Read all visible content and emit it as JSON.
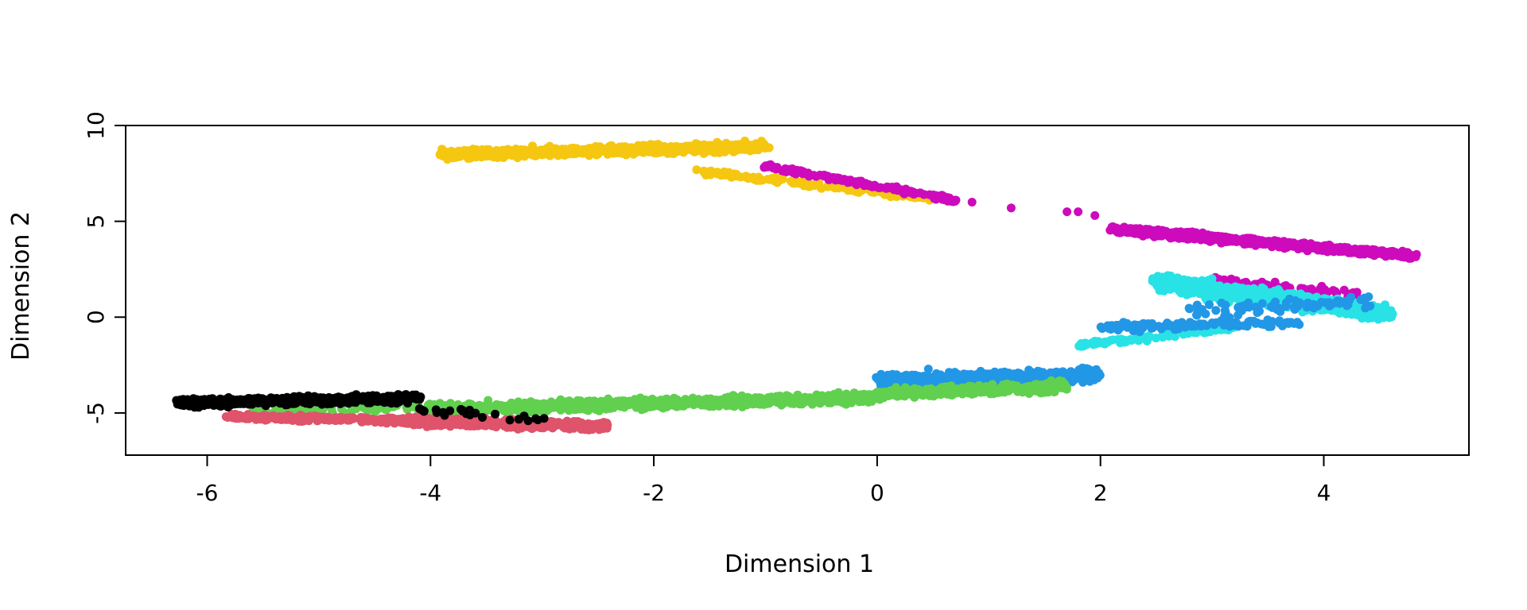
{
  "chart_data": {
    "type": "scatter",
    "title": "",
    "xlabel": "Dimension 1",
    "ylabel": "Dimension 2",
    "xlim": [
      -6.73,
      5.3
    ],
    "ylim": [
      -7.2,
      10
    ],
    "xticks": [
      -6,
      -4,
      -2,
      0,
      2,
      4
    ],
    "yticks": [
      -5,
      0,
      5,
      10
    ],
    "xtick_labels": [
      "-6",
      "-4",
      "-2",
      "0",
      "2",
      "4"
    ],
    "ytick_labels": [
      "-5",
      "0",
      "5",
      "10"
    ],
    "grid": false,
    "legend": "none",
    "series": [
      {
        "color": "#F5C710",
        "clusters": [
          {
            "from": [
              -3.9,
              8.5
            ],
            "to": [
              -1.0,
              8.9
            ],
            "width": 0.9,
            "count": 900
          },
          {
            "from": [
              -1.6,
              7.6
            ],
            "to": [
              0.5,
              6.2
            ],
            "width": 0.6,
            "count": 180
          }
        ]
      },
      {
        "color": "#CD0BBC",
        "clusters": [
          {
            "from": [
              -1.0,
              7.9
            ],
            "to": [
              0.7,
              6.1
            ],
            "width": 0.5,
            "count": 180
          },
          {
            "from": [
              2.1,
              4.6
            ],
            "to": [
              4.8,
              3.2
            ],
            "width": 0.7,
            "count": 800
          },
          {
            "from": [
              3.0,
              2.0
            ],
            "to": [
              4.3,
              1.2
            ],
            "width": 0.8,
            "count": 60
          }
        ],
        "points": [
          [
            0.85,
            6.0
          ],
          [
            1.2,
            5.7
          ],
          [
            1.7,
            5.5
          ],
          [
            1.8,
            5.5
          ],
          [
            1.95,
            5.3
          ]
        ]
      },
      {
        "color": "#28E2E5",
        "clusters": [
          {
            "from": [
              2.5,
              1.8
            ],
            "to": [
              4.6,
              0.2
            ],
            "width": 1.6,
            "count": 900
          },
          {
            "from": [
              1.8,
              -1.5
            ],
            "to": [
              3.2,
              -0.5
            ],
            "width": 0.6,
            "count": 100
          }
        ]
      },
      {
        "color": "#2297E6",
        "clusters": [
          {
            "from": [
              0.0,
              -3.3
            ],
            "to": [
              2.0,
              -3.0
            ],
            "width": 1.3,
            "count": 550
          },
          {
            "from": [
              2.0,
              -0.5
            ],
            "to": [
              3.8,
              -0.3
            ],
            "width": 0.8,
            "count": 120
          },
          {
            "from": [
              2.8,
              0.3
            ],
            "to": [
              4.4,
              0.8
            ],
            "width": 1.4,
            "count": 80
          }
        ]
      },
      {
        "color": "#61D04F",
        "clusters": [
          {
            "from": [
              -4.0,
              -4.8
            ],
            "to": [
              0.0,
              -4.2
            ],
            "width": 1.0,
            "count": 1100
          },
          {
            "from": [
              0.0,
              -4.0
            ],
            "to": [
              1.7,
              -3.6
            ],
            "width": 1.0,
            "count": 300
          },
          {
            "from": [
              -5.6,
              -4.9
            ],
            "to": [
              -3.9,
              -4.7
            ],
            "width": 0.8,
            "count": 70
          }
        ]
      },
      {
        "color": "#DF536B",
        "clusters": [
          {
            "from": [
              -5.8,
              -5.2
            ],
            "to": [
              -4.2,
              -5.4
            ],
            "width": 0.6,
            "count": 300
          },
          {
            "from": [
              -4.2,
              -5.4
            ],
            "to": [
              -2.4,
              -5.7
            ],
            "width": 0.9,
            "count": 450
          }
        ]
      },
      {
        "color": "#000000",
        "clusters": [
          {
            "from": [
              -6.25,
              -4.5
            ],
            "to": [
              -4.1,
              -4.2
            ],
            "width": 0.8,
            "count": 600
          },
          {
            "from": [
              -4.1,
              -4.8
            ],
            "to": [
              -3.0,
              -5.4
            ],
            "width": 0.8,
            "count": 25
          }
        ]
      }
    ]
  }
}
